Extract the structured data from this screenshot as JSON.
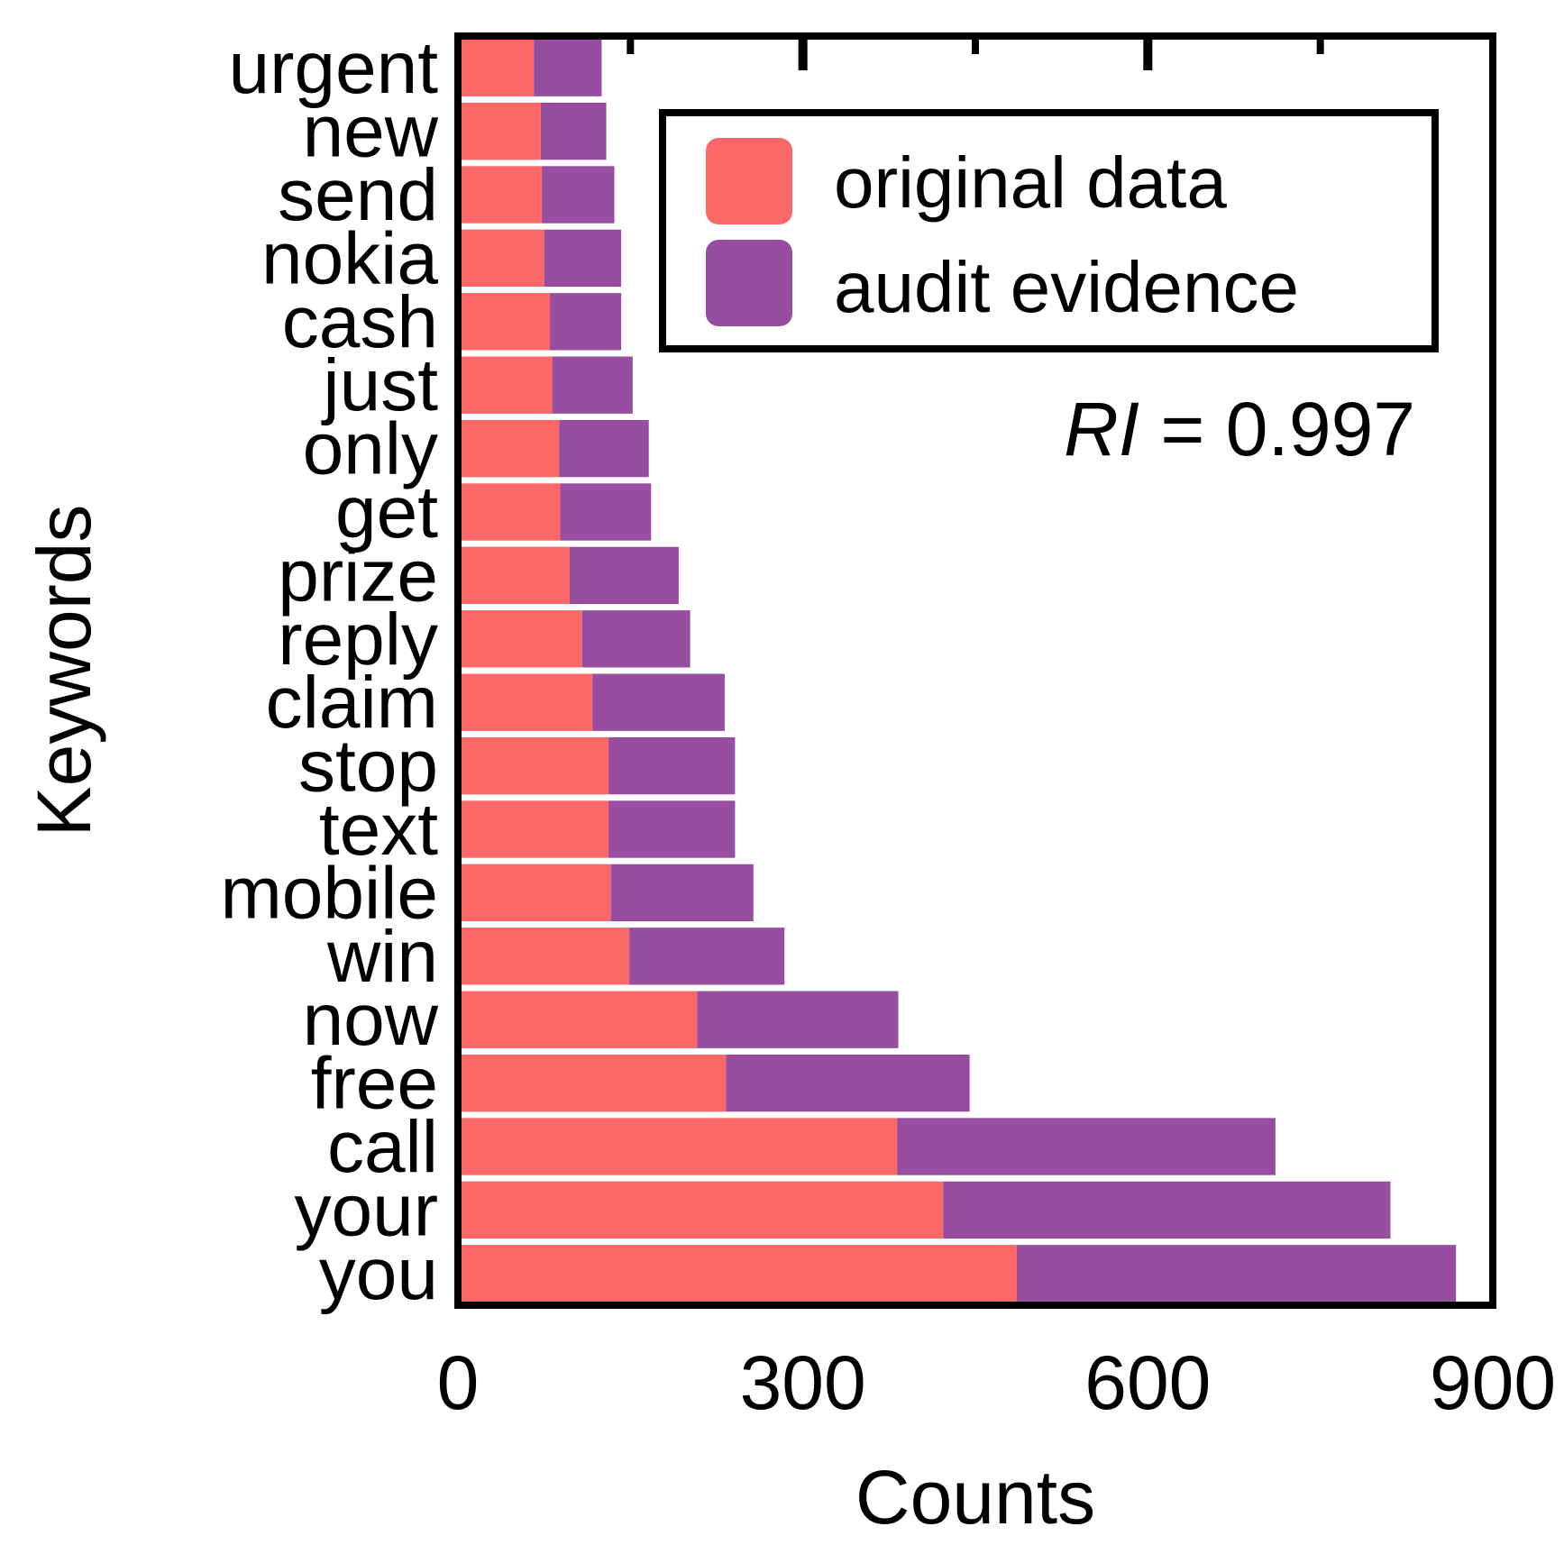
{
  "chart_data": {
    "type": "bar",
    "orientation": "horizontal",
    "stacked": true,
    "categories": [
      "urgent",
      "new",
      "send",
      "nokia",
      "cash",
      "just",
      "only",
      "get",
      "prize",
      "reply",
      "claim",
      "stop",
      "text",
      "mobile",
      "win",
      "now",
      "free",
      "call",
      "your",
      "you"
    ],
    "series": [
      {
        "name": "original data",
        "color": "#fc6767",
        "values": [
          66,
          72,
          73,
          75,
          80,
          82,
          88,
          89,
          97,
          108,
          117,
          131,
          131,
          133,
          149,
          208,
          233,
          382,
          422,
          486
        ]
      },
      {
        "name": "audit evidence",
        "color": "#974ea1",
        "values": [
          59,
          57,
          63,
          67,
          62,
          70,
          78,
          79,
          95,
          94,
          115,
          110,
          110,
          124,
          135,
          175,
          212,
          329,
          389,
          382
        ]
      }
    ],
    "xlabel": "Counts",
    "ylabel": "Keywords",
    "xlim": [
      0,
      900
    ],
    "xticks": [
      0,
      300,
      600,
      900
    ],
    "grid": false,
    "legend": {
      "placement": "top-right",
      "entries": [
        "original data",
        "audit evidence"
      ]
    },
    "annotation": {
      "symbol": "RI",
      "text": " = 0.997"
    }
  }
}
